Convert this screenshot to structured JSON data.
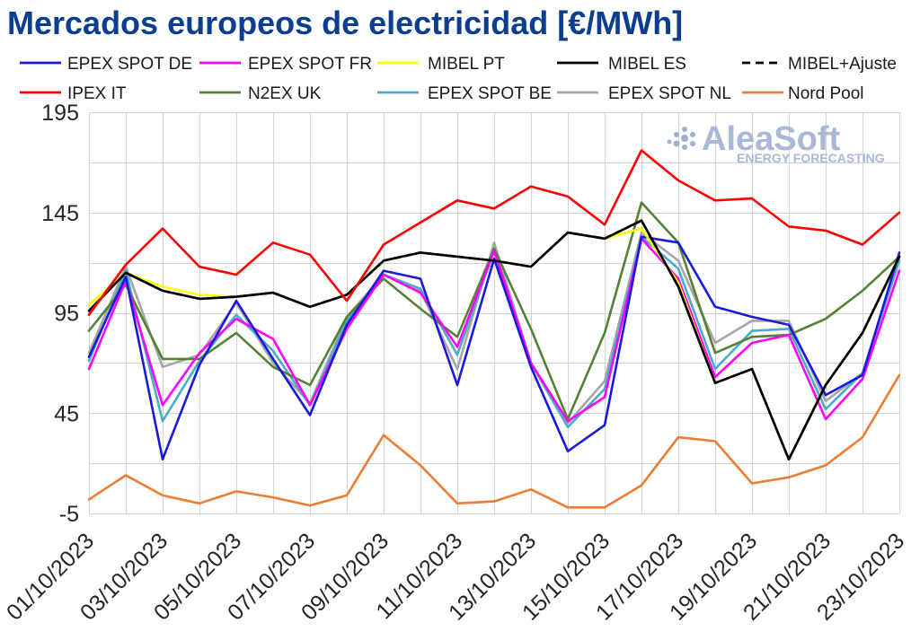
{
  "chart_data": {
    "type": "line",
    "title": "Mercados europeos de electricidad [€/MWh]",
    "x": [
      "01/10/2023",
      "02/10/2023",
      "03/10/2023",
      "04/10/2023",
      "05/10/2023",
      "06/10/2023",
      "07/10/2023",
      "08/10/2023",
      "09/10/2023",
      "10/10/2023",
      "11/10/2023",
      "12/10/2023",
      "13/10/2023",
      "14/10/2023",
      "15/10/2023",
      "16/10/2023",
      "17/10/2023",
      "18/10/2023",
      "19/10/2023",
      "20/10/2023",
      "21/10/2023",
      "22/10/2023",
      "23/10/2023"
    ],
    "xticks": [
      "01/10/2023",
      "03/10/2023",
      "05/10/2023",
      "07/10/2023",
      "09/10/2023",
      "11/10/2023",
      "13/10/2023",
      "15/10/2023",
      "17/10/2023",
      "19/10/2023",
      "21/10/2023",
      "23/10/2023"
    ],
    "ylim": [
      -5,
      195
    ],
    "yticks": [
      195,
      145,
      95,
      45,
      -5
    ],
    "grid": true,
    "legend_position": "top",
    "series": [
      {
        "name": "EPEX SPOT DE",
        "color": "#1a1adb",
        "values": [
          73,
          113,
          22,
          69,
          101,
          72,
          44,
          89,
          116,
          112,
          59,
          122,
          68,
          26,
          39,
          133,
          130,
          98,
          93,
          89,
          54,
          64,
          125
        ]
      },
      {
        "name": "EPEX SPOT FR",
        "color": "#ff00ff",
        "values": [
          67,
          111,
          49,
          75,
          92,
          82,
          49,
          87,
          114,
          105,
          78,
          126,
          70,
          41,
          53,
          132,
          112,
          63,
          80,
          84,
          42,
          62,
          116
        ]
      },
      {
        "name": "MIBEL PT",
        "color": "#ffff00",
        "values": [
          99,
          115,
          108,
          104,
          103,
          105,
          98,
          104,
          121,
          125,
          123,
          121,
          118,
          135,
          132,
          137,
          110,
          60,
          67,
          22,
          59,
          85,
          123
        ]
      },
      {
        "name": "MIBEL ES",
        "color": "#000000",
        "values": [
          96,
          115,
          106,
          102,
          103,
          105,
          98,
          104,
          121,
          125,
          123,
          121,
          118,
          135,
          132,
          141,
          108,
          60,
          67,
          22,
          59,
          85,
          123
        ]
      },
      {
        "name": "MIBEL+Ajuste",
        "color": "#000000",
        "line_style": "dashed",
        "values": [
          96,
          115,
          106,
          102,
          103,
          105,
          98,
          104,
          121,
          125,
          123,
          121,
          118,
          135,
          132,
          141,
          108,
          60,
          67,
          22,
          59,
          85,
          123
        ]
      },
      {
        "name": "IPEX IT",
        "color": "#ff0000",
        "values": [
          94,
          119,
          137,
          118,
          114,
          130,
          124,
          101,
          129,
          140,
          151,
          147,
          158,
          153,
          139,
          176,
          161,
          151,
          152,
          138,
          136,
          129,
          145
        ]
      },
      {
        "name": "N2EX UK",
        "color": "#548235",
        "values": [
          86,
          109,
          72,
          72,
          85,
          68,
          59,
          93,
          112,
          97,
          83,
          127,
          87,
          42,
          85,
          150,
          130,
          75,
          83,
          84,
          92,
          106,
          123
        ]
      },
      {
        "name": "EPEX SPOT BE",
        "color": "#4bacc6",
        "values": [
          71,
          116,
          41,
          71,
          94,
          76,
          49,
          91,
          114,
          107,
          74,
          126,
          70,
          38,
          57,
          133,
          117,
          67,
          86,
          87,
          47,
          65,
          121
        ]
      },
      {
        "name": "EPEX SPOT NL",
        "color": "#a6a6a6",
        "values": [
          75,
          118,
          68,
          74,
          100,
          70,
          50,
          93,
          114,
          106,
          67,
          130,
          70,
          40,
          61,
          135,
          121,
          80,
          91,
          91,
          51,
          65,
          122
        ]
      },
      {
        "name": "Nord Pool",
        "color": "#ed7d31",
        "values": [
          2,
          14,
          4,
          0,
          6,
          3,
          -1,
          4,
          34,
          19,
          0,
          1,
          7,
          -2,
          -2,
          9,
          33,
          31,
          10,
          13,
          19,
          33,
          64
        ]
      }
    ]
  },
  "logo": {
    "name": "AleaSoft",
    "tagline": "ENERGY FORECASTING"
  }
}
